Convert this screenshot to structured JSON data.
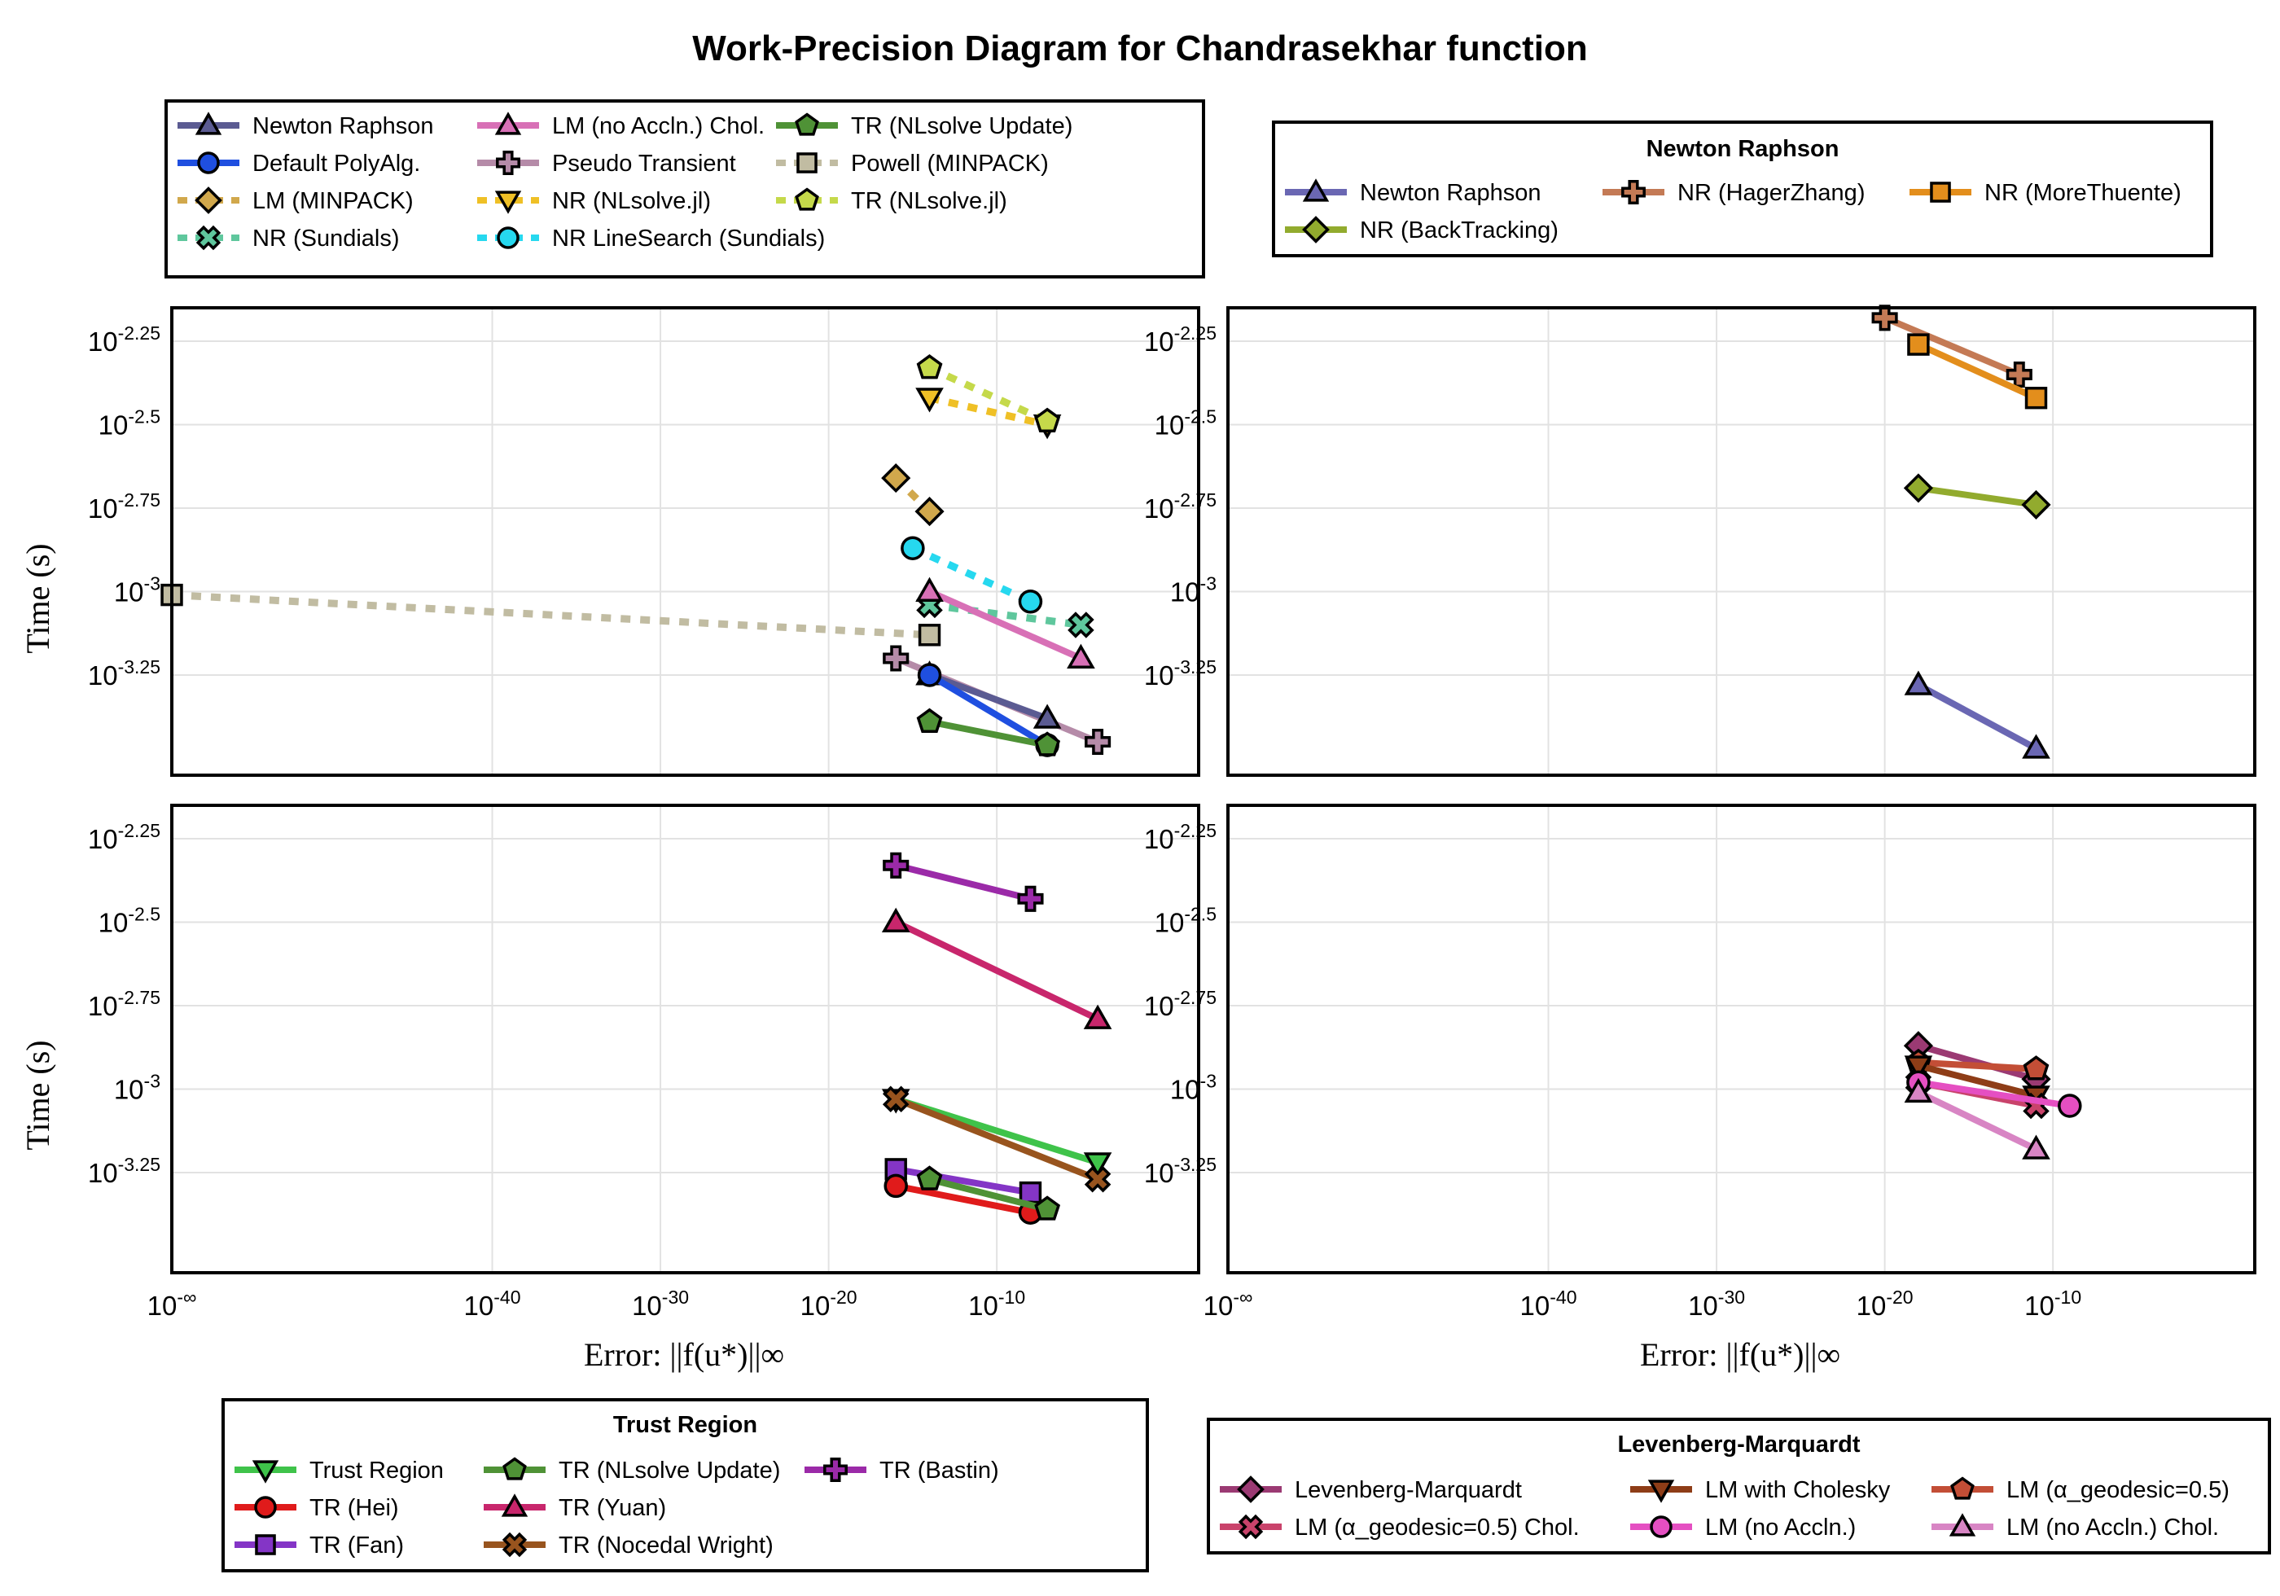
{
  "title": "Work-Precision Diagram for Chandrasekhar function",
  "axes": {
    "xlabel": "Error: ||f(u*)||∞",
    "ylabel": "Time (s)",
    "xticks": [
      {
        "value": -1000,
        "base": "10",
        "exp": "-∞"
      },
      {
        "value": -40,
        "base": "10",
        "exp": "-40"
      },
      {
        "value": -30,
        "base": "10",
        "exp": "-30"
      },
      {
        "value": -20,
        "base": "10",
        "exp": "-20"
      },
      {
        "value": -10,
        "base": "10",
        "exp": "-10"
      }
    ],
    "yticks": [
      {
        "value": -2.25,
        "base": "10",
        "exp": "-2.25"
      },
      {
        "value": -2.5,
        "base": "10",
        "exp": "-2.5"
      },
      {
        "value": -2.75,
        "base": "10",
        "exp": "-2.75"
      },
      {
        "value": -3,
        "base": "10",
        "exp": "-3"
      },
      {
        "value": -3.25,
        "base": "10",
        "exp": "-3.25"
      }
    ]
  },
  "legends": {
    "main": {
      "title": "",
      "entries": [
        {
          "label": "Newton Raphson",
          "color": "#5b5b92",
          "marker": "triangle",
          "dashed": false
        },
        {
          "label": "Default PolyAlg.",
          "color": "#1f4fe0",
          "marker": "circle",
          "dashed": false
        },
        {
          "label": "LM (MINPACK)",
          "color": "#d1a84c",
          "marker": "diamond",
          "dashed": true
        },
        {
          "label": "NR (Sundials)",
          "color": "#5fc79d",
          "marker": "xcross",
          "dashed": true
        },
        {
          "label": "LM (no Accln.) Chol.",
          "color": "#d870b6",
          "marker": "triangle",
          "dashed": false
        },
        {
          "label": "Pseudo Transient",
          "color": "#b58ba8",
          "marker": "cross",
          "dashed": false
        },
        {
          "label": "NR (NLsolve.jl)",
          "color": "#efc026",
          "marker": "dtriangle",
          "dashed": true
        },
        {
          "label": "NR LineSearch (Sundials)",
          "color": "#26d8ef",
          "marker": "circle",
          "dashed": true
        },
        {
          "label": "TR (NLsolve Update)",
          "color": "#4f9236",
          "marker": "pentagon",
          "dashed": false
        },
        {
          "label": "Powell (MINPACK)",
          "color": "#c1bca2",
          "marker": "square",
          "dashed": true
        },
        {
          "label": "TR (NLsolve.jl)",
          "color": "#c5d94a",
          "marker": "pentagon",
          "dashed": true
        }
      ]
    },
    "newton": {
      "title": "Newton Raphson",
      "entries": [
        {
          "label": "Newton Raphson",
          "color": "#6a67b3",
          "marker": "triangle",
          "dashed": false
        },
        {
          "label": "NR (HagerZhang)",
          "color": "#c47a55",
          "marker": "cross",
          "dashed": false
        },
        {
          "label": "NR (MoreThuente)",
          "color": "#e38e1c",
          "marker": "square",
          "dashed": false
        },
        {
          "label": "NR (BackTracking)",
          "color": "#92ab2e",
          "marker": "diamond",
          "dashed": false
        }
      ]
    },
    "trust": {
      "title": "Trust Region",
      "entries": [
        {
          "label": "Trust Region",
          "color": "#3fc34a",
          "marker": "dtriangle",
          "dashed": false
        },
        {
          "label": "TR (Hei)",
          "color": "#e01b1b",
          "marker": "circle",
          "dashed": false
        },
        {
          "label": "TR (Fan)",
          "color": "#8435c6",
          "marker": "square",
          "dashed": false
        },
        {
          "label": "TR (NLsolve Update)",
          "color": "#4f9236",
          "marker": "pentagon",
          "dashed": false
        },
        {
          "label": "TR (Yuan)",
          "color": "#c8266c",
          "marker": "triangle",
          "dashed": false
        },
        {
          "label": "TR (Nocedal Wright)",
          "color": "#98541e",
          "marker": "xcross",
          "dashed": false
        },
        {
          "label": "TR (Bastin)",
          "color": "#9b2aa8",
          "marker": "cross",
          "dashed": false
        }
      ]
    },
    "lm": {
      "title": "Levenberg-Marquardt",
      "entries": [
        {
          "label": "Levenberg-Marquardt",
          "color": "#9b3a73",
          "marker": "diamond",
          "dashed": false
        },
        {
          "label": "LM (α_geodesic=0.5) Chol.",
          "color": "#c9436b",
          "marker": "xcross",
          "dashed": false
        },
        {
          "label": "LM with Cholesky",
          "color": "#8e3d17",
          "marker": "dtriangle",
          "dashed": false
        },
        {
          "label": "LM (no Accln.)",
          "color": "#e54fc2",
          "marker": "circle",
          "dashed": false
        },
        {
          "label": "LM (α_geodesic=0.5)",
          "color": "#c34e36",
          "marker": "pentagon",
          "dashed": false
        },
        {
          "label": "LM (no Accln.) Chol.",
          "color": "#d885c4",
          "marker": "triangle",
          "dashed": false
        }
      ]
    }
  },
  "chart_data": [
    {
      "type": "line",
      "panel": "top-left",
      "xscale": "log10",
      "yscale": "log10",
      "xlim": [
        -1000,
        2
      ],
      "ylim": [
        -3.55,
        -2.15
      ],
      "series": [
        {
          "name": "Powell (MINPACK)",
          "color": "#c1bca2",
          "marker": "square",
          "dashed": true,
          "x": [
            -1000,
            -14
          ],
          "y": [
            -3.01,
            -3.13
          ]
        },
        {
          "name": "NR (NLsolve.jl)",
          "color": "#efc026",
          "marker": "dtriangle",
          "dashed": true,
          "x": [
            -14,
            -7
          ],
          "y": [
            -2.42,
            -2.5
          ]
        },
        {
          "name": "TR (NLsolve.jl)",
          "color": "#c5d94a",
          "marker": "pentagon",
          "dashed": true,
          "x": [
            -14,
            -7
          ],
          "y": [
            -2.33,
            -2.49
          ]
        },
        {
          "name": "LM (MINPACK)",
          "color": "#d1a84c",
          "marker": "diamond",
          "dashed": true,
          "x": [
            -16,
            -14
          ],
          "y": [
            -2.66,
            -2.76
          ]
        },
        {
          "name": "NR LineSearch (Sundials)",
          "color": "#26d8ef",
          "marker": "circle",
          "dashed": true,
          "x": [
            -15,
            -8
          ],
          "y": [
            -2.87,
            -3.03
          ]
        },
        {
          "name": "NR (Sundials)",
          "color": "#5fc79d",
          "marker": "xcross",
          "dashed": true,
          "x": [
            -14,
            -5
          ],
          "y": [
            -3.04,
            -3.1
          ]
        },
        {
          "name": "LM (no Accln.) Chol.",
          "color": "#d870b6",
          "marker": "triangle",
          "dashed": false,
          "x": [
            -14,
            -5
          ],
          "y": [
            -3.0,
            -3.2
          ]
        },
        {
          "name": "Pseudo Transient",
          "color": "#b58ba8",
          "marker": "cross",
          "dashed": false,
          "x": [
            -16,
            -4
          ],
          "y": [
            -3.2,
            -3.45
          ]
        },
        {
          "name": "Newton Raphson",
          "color": "#5b5b92",
          "marker": "triangle",
          "dashed": false,
          "x": [
            -14,
            -7
          ],
          "y": [
            -3.25,
            -3.38
          ]
        },
        {
          "name": "Default PolyAlg.",
          "color": "#1f4fe0",
          "marker": "circle",
          "dashed": false,
          "x": [
            -14,
            -7
          ],
          "y": [
            -3.25,
            -3.46
          ]
        },
        {
          "name": "TR (NLsolve Update)",
          "color": "#4f9236",
          "marker": "pentagon",
          "dashed": false,
          "x": [
            -14,
            -7
          ],
          "y": [
            -3.39,
            -3.46
          ]
        }
      ]
    },
    {
      "type": "line",
      "panel": "top-right",
      "xscale": "log10",
      "yscale": "log10",
      "xlim": [
        -1000,
        2
      ],
      "ylim": [
        -3.55,
        -2.15
      ],
      "series": [
        {
          "name": "NR (HagerZhang)",
          "color": "#c47a55",
          "marker": "cross",
          "dashed": false,
          "x": [
            -20,
            -12
          ],
          "y": [
            -2.18,
            -2.35
          ]
        },
        {
          "name": "NR (MoreThuente)",
          "color": "#e38e1c",
          "marker": "square",
          "dashed": false,
          "x": [
            -18,
            -11
          ],
          "y": [
            -2.26,
            -2.42
          ]
        },
        {
          "name": "NR (BackTracking)",
          "color": "#92ab2e",
          "marker": "diamond",
          "dashed": false,
          "x": [
            -18,
            -11
          ],
          "y": [
            -2.69,
            -2.74
          ]
        },
        {
          "name": "Newton Raphson",
          "color": "#6a67b3",
          "marker": "triangle",
          "dashed": false,
          "x": [
            -18,
            -11
          ],
          "y": [
            -3.28,
            -3.47
          ]
        }
      ]
    },
    {
      "type": "line",
      "panel": "bottom-left",
      "xscale": "log10",
      "yscale": "log10",
      "xlim": [
        -1000,
        2
      ],
      "ylim": [
        -3.55,
        -2.15
      ],
      "series": [
        {
          "name": "TR (Bastin)",
          "color": "#9b2aa8",
          "marker": "cross",
          "dashed": false,
          "x": [
            -16,
            -8
          ],
          "y": [
            -2.33,
            -2.43
          ]
        },
        {
          "name": "TR (Yuan)",
          "color": "#c8266c",
          "marker": "triangle",
          "dashed": false,
          "x": [
            -16,
            -4
          ],
          "y": [
            -2.5,
            -2.79
          ]
        },
        {
          "name": "Trust Region",
          "color": "#3fc34a",
          "marker": "dtriangle",
          "dashed": false,
          "x": [
            -16,
            -4
          ],
          "y": [
            -3.03,
            -3.22
          ]
        },
        {
          "name": "TR (Nocedal Wright)",
          "color": "#98541e",
          "marker": "xcross",
          "dashed": false,
          "x": [
            -16,
            -4
          ],
          "y": [
            -3.03,
            -3.27
          ]
        },
        {
          "name": "TR (Fan)",
          "color": "#8435c6",
          "marker": "square",
          "dashed": false,
          "x": [
            -16,
            -8
          ],
          "y": [
            -3.24,
            -3.31
          ]
        },
        {
          "name": "TR (Hei)",
          "color": "#e01b1b",
          "marker": "circle",
          "dashed": false,
          "x": [
            -16,
            -8
          ],
          "y": [
            -3.29,
            -3.37
          ]
        },
        {
          "name": "TR (NLsolve Update)",
          "color": "#4f9236",
          "marker": "pentagon",
          "dashed": false,
          "x": [
            -14,
            -7
          ],
          "y": [
            -3.27,
            -3.36
          ]
        }
      ]
    },
    {
      "type": "line",
      "panel": "bottom-right",
      "xscale": "log10",
      "yscale": "log10",
      "xlim": [
        -1000,
        2
      ],
      "ylim": [
        -3.55,
        -2.15
      ],
      "series": [
        {
          "name": "Levenberg-Marquardt",
          "color": "#9b3a73",
          "marker": "diamond",
          "dashed": false,
          "x": [
            -18,
            -11
          ],
          "y": [
            -2.87,
            -2.97
          ]
        },
        {
          "name": "LM (α_geodesic=0.5)",
          "color": "#c34e36",
          "marker": "pentagon",
          "dashed": false,
          "x": [
            -18,
            -11
          ],
          "y": [
            -2.92,
            -2.94
          ]
        },
        {
          "name": "LM with Cholesky",
          "color": "#8e3d17",
          "marker": "dtriangle",
          "dashed": false,
          "x": [
            -18,
            -11
          ],
          "y": [
            -2.93,
            -3.02
          ]
        },
        {
          "name": "LM (α_geodesic=0.5) Chol.",
          "color": "#c9436b",
          "marker": "xcross",
          "dashed": false,
          "x": [
            -18,
            -11
          ],
          "y": [
            -2.98,
            -3.05
          ]
        },
        {
          "name": "LM (no Accln.)",
          "color": "#e54fc2",
          "marker": "circle",
          "dashed": false,
          "x": [
            -18,
            -9
          ],
          "y": [
            -2.98,
            -3.05
          ]
        },
        {
          "name": "LM (no Accln.) Chol.",
          "color": "#d885c4",
          "marker": "triangle",
          "dashed": false,
          "x": [
            -18,
            -11
          ],
          "y": [
            -3.01,
            -3.18
          ]
        }
      ]
    }
  ]
}
